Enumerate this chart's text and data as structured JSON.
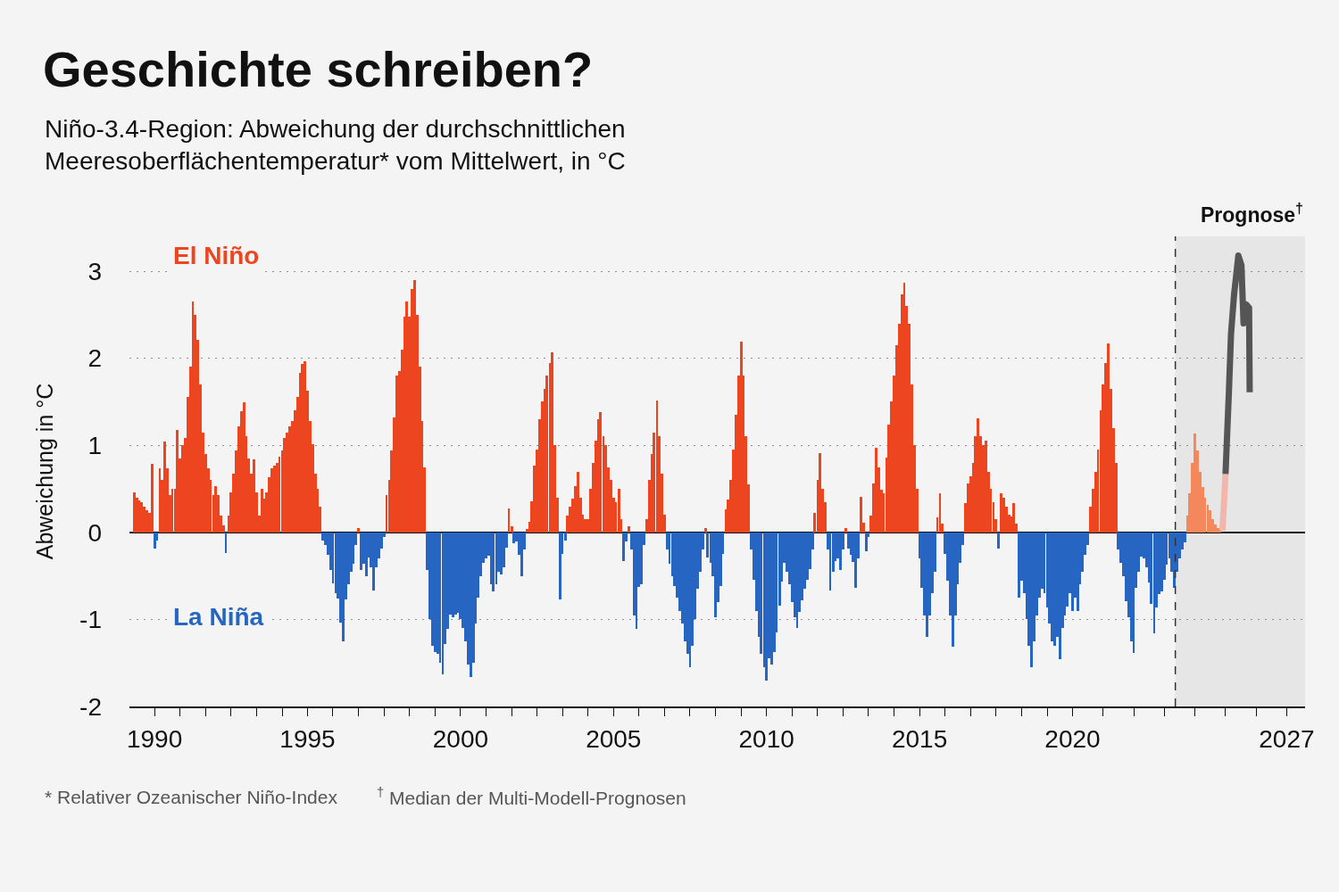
{
  "chart_data": {
    "type": "bar",
    "title": "Geschichte schreiben?",
    "subtitle": "Niño-3.4-Region: Abweichung der durchschnittlichen Meeresoberflächentemperatur* vom Mittelwert, in °C",
    "ylabel": "Abweichung in °C",
    "annotations": [
      "* Relativer Ozeanischer Niño-Index",
      "$^{†}$ Median der Multi-Modell-Prognosen"
    ],
    "x": [
      1989.33,
      1989.42,
      1989.5,
      1989.58,
      1989.67,
      1989.75,
      1989.83,
      1989.92,
      1990,
      1990.08,
      1990.17,
      1990.25,
      1990.33,
      1990.42,
      1990.5,
      1990.58,
      1990.67,
      1990.75,
      1990.83,
      1990.92,
      1991,
      1991.08,
      1991.17,
      1991.25,
      1991.33,
      1991.42,
      1991.5,
      1991.58,
      1991.67,
      1991.75,
      1991.83,
      1991.92,
      1992,
      1992.08,
      1992.17,
      1992.25,
      1992.33,
      1992.42,
      1992.5,
      1992.58,
      1992.67,
      1992.75,
      1992.83,
      1992.92,
      1993,
      1993.08,
      1993.17,
      1993.25,
      1993.33,
      1993.42,
      1993.5,
      1993.58,
      1993.67,
      1993.75,
      1993.83,
      1993.92,
      1994,
      1994.08,
      1994.17,
      1994.25,
      1994.33,
      1994.42,
      1994.5,
      1994.58,
      1994.67,
      1994.75,
      1994.83,
      1994.92,
      1995,
      1995.08,
      1995.17,
      1995.25,
      1995.33,
      1995.42,
      1995.5,
      1995.58,
      1995.67,
      1995.75,
      1995.83,
      1995.92,
      1996,
      1996.08,
      1996.17,
      1996.25,
      1996.33,
      1996.42,
      1996.5,
      1996.58,
      1996.67,
      1996.75,
      1996.83,
      1996.92,
      1997,
      1997.08,
      1997.17,
      1997.25,
      1997.33,
      1997.42,
      1997.5,
      1997.58,
      1997.67,
      1997.75,
      1997.83,
      1997.92,
      1998,
      1998.08,
      1998.17,
      1998.25,
      1998.33,
      1998.42,
      1998.5,
      1998.58,
      1998.67,
      1998.75,
      1998.83,
      1998.92,
      1999,
      1999.08,
      1999.17,
      1999.25,
      1999.33,
      1999.42,
      1999.5,
      1999.58,
      1999.67,
      1999.75,
      1999.83,
      1999.92,
      2000,
      2000.08,
      2000.17,
      2000.25,
      2000.33,
      2000.42,
      2000.5,
      2000.58,
      2000.67,
      2000.75,
      2000.83,
      2000.92,
      2001,
      2001.08,
      2001.17,
      2001.25,
      2001.33,
      2001.42,
      2001.5,
      2001.58,
      2001.67,
      2001.75,
      2001.83,
      2001.92,
      2002,
      2002.08,
      2002.17,
      2002.25,
      2002.33,
      2002.42,
      2002.5,
      2002.58,
      2002.67,
      2002.75,
      2002.83,
      2002.92,
      2003,
      2003.08,
      2003.17,
      2003.25,
      2003.33,
      2003.42,
      2003.5,
      2003.58,
      2003.67,
      2003.75,
      2003.83,
      2003.92,
      2004,
      2004.08,
      2004.17,
      2004.25,
      2004.33,
      2004.42,
      2004.5,
      2004.58,
      2004.67,
      2004.75,
      2004.83,
      2004.92,
      2005,
      2005.08,
      2005.17,
      2005.25,
      2005.33,
      2005.42,
      2005.5,
      2005.58,
      2005.67,
      2005.75,
      2005.83,
      2005.92,
      2006,
      2006.08,
      2006.17,
      2006.25,
      2006.33,
      2006.42,
      2006.5,
      2006.58,
      2006.67,
      2006.75,
      2006.83,
      2006.92,
      2007,
      2007.08,
      2007.17,
      2007.25,
      2007.33,
      2007.42,
      2007.5,
      2007.58,
      2007.67,
      2007.75,
      2007.83,
      2007.92,
      2008,
      2008.08,
      2008.17,
      2008.25,
      2008.33,
      2008.42,
      2008.5,
      2008.58,
      2008.67,
      2008.75,
      2008.83,
      2008.92,
      2009,
      2009.08,
      2009.17,
      2009.25,
      2009.33,
      2009.42,
      2009.5,
      2009.58,
      2009.67,
      2009.75,
      2009.83,
      2009.92,
      2010,
      2010.08,
      2010.17,
      2010.25,
      2010.33,
      2010.42,
      2010.5,
      2010.58,
      2010.67,
      2010.75,
      2010.83,
      2010.92,
      2011,
      2011.08,
      2011.17,
      2011.25,
      2011.33,
      2011.42,
      2011.5,
      2011.58,
      2011.67,
      2011.75,
      2011.83,
      2011.92,
      2012,
      2012.08,
      2012.17,
      2012.25,
      2012.33,
      2012.42,
      2012.5,
      2012.58,
      2012.67,
      2012.75,
      2012.83,
      2012.92,
      2013,
      2013.08,
      2013.17,
      2013.25,
      2013.33,
      2013.42,
      2013.5,
      2013.58,
      2013.67,
      2013.75,
      2013.83,
      2013.92,
      2014,
      2014.08,
      2014.17,
      2014.25,
      2014.33,
      2014.42,
      2014.5,
      2014.58,
      2014.67,
      2014.75,
      2014.83,
      2014.92,
      2015,
      2015.08,
      2015.17,
      2015.25,
      2015.33,
      2015.42,
      2015.5,
      2015.58,
      2015.67,
      2015.75,
      2015.83,
      2015.92,
      2016,
      2016.08,
      2016.17,
      2016.25,
      2016.33,
      2016.42,
      2016.5,
      2016.58,
      2016.67,
      2016.75,
      2016.83,
      2016.92,
      2017,
      2017.08,
      2017.17,
      2017.25,
      2017.33,
      2017.42,
      2017.5,
      2017.58,
      2017.67,
      2017.75,
      2017.83,
      2017.92,
      2018,
      2018.08,
      2018.17,
      2018.25,
      2018.33,
      2018.42,
      2018.5,
      2018.58,
      2018.67,
      2018.75,
      2018.83,
      2018.92,
      2019,
      2019.08,
      2019.17,
      2019.25,
      2019.33,
      2019.42,
      2019.5,
      2019.58,
      2019.67,
      2019.75,
      2019.83,
      2019.92,
      2020,
      2020.08,
      2020.17,
      2020.25,
      2020.33,
      2020.42,
      2020.5,
      2020.58,
      2020.67,
      2020.75,
      2020.83,
      2020.92,
      2021,
      2021.08,
      2021.17,
      2021.25,
      2021.33,
      2021.42,
      2021.5,
      2021.58,
      2021.67,
      2021.75,
      2021.83,
      2021.92,
      2022,
      2022.08,
      2022.17,
      2022.25,
      2022.33,
      2022.42,
      2022.5,
      2022.58,
      2022.67,
      2022.75,
      2022.83,
      2022.92,
      2023,
      2023.08,
      2023.17,
      2023.25,
      2023.33,
      2023.42,
      2023.5,
      2023.58,
      2023.67
    ],
    "series": [
      {
        "name": "El Niño",
        "color": "#ec4520",
        "values": [
          0.46,
          0.4,
          0.37,
          0.35,
          0.3,
          0.25,
          0.22,
          0.79,
          null,
          null,
          0.74,
          0.6,
          1.04,
          0.74,
          0.43,
          0.5,
          0.5,
          1.18,
          0.85,
          1.0,
          1.08,
          1.56,
          1.9,
          2.65,
          2.5,
          2.21,
          1.7,
          1.15,
          0.9,
          0.74,
          0.6,
          0.43,
          0.53,
          0.43,
          0.19,
          0.08,
          null,
          0.19,
          0.46,
          0.67,
          0.94,
          1.22,
          1.39,
          1.49,
          1.1,
          0.85,
          0.67,
          0.84,
          0.46,
          0.19,
          0.5,
          0.39,
          0.46,
          0.63,
          0.74,
          0.77,
          0.8,
          0.87,
          0.94,
          1.08,
          1.15,
          1.22,
          1.28,
          1.4,
          1.56,
          1.83,
          1.93,
          1.97,
          1.63,
          1.28,
          1.01,
          0.67,
          0.5,
          0.3,
          null,
          null,
          null,
          null,
          null,
          null,
          null,
          null,
          null,
          null,
          null,
          null,
          null,
          null,
          0.05,
          null,
          null,
          null,
          null,
          null,
          null,
          null,
          null,
          null,
          null,
          0.43,
          0.6,
          0.94,
          1.32,
          1.8,
          1.85,
          2.1,
          2.48,
          2.65,
          2.48,
          2.8,
          2.9,
          2.5,
          1.9,
          1.28,
          0.75,
          null,
          null,
          null,
          null,
          null,
          null,
          null,
          null,
          null,
          null,
          null,
          null,
          null,
          null,
          null,
          null,
          null,
          null,
          null,
          null,
          null,
          null,
          null,
          null,
          null,
          null,
          null,
          null,
          null,
          null,
          null,
          null,
          0.27,
          0.07,
          null,
          null,
          null,
          null,
          null,
          0.04,
          0.12,
          0.36,
          0.77,
          0.95,
          1.3,
          1.5,
          1.65,
          1.8,
          1.95,
          2.07,
          1.0,
          0.4,
          null,
          null,
          null,
          0.19,
          0.3,
          0.39,
          0.53,
          0.7,
          0.4,
          0.2,
          0.15,
          0.15,
          0.5,
          0.8,
          1.05,
          1.3,
          1.38,
          1.1,
          1.0,
          0.75,
          0.6,
          0.4,
          0.35,
          0.5,
          0.15,
          null,
          null,
          0.07,
          null,
          null,
          null,
          null,
          null,
          null,
          0.15,
          0.6,
          0.9,
          1.15,
          1.51,
          1.1,
          0.67,
          0.2,
          null,
          null,
          null,
          null,
          null,
          null,
          null,
          null,
          null,
          null,
          null,
          null,
          null,
          null,
          null,
          0.05,
          null,
          null,
          null,
          null,
          null,
          null,
          null,
          0.26,
          0.38,
          0.6,
          0.95,
          1.35,
          1.8,
          2.19,
          1.8,
          1.1,
          0.55,
          null,
          null,
          null,
          null,
          null,
          null,
          null,
          null,
          null,
          null,
          null,
          null,
          null,
          null,
          null,
          null,
          null,
          null,
          null,
          null,
          null,
          null,
          null,
          null,
          null,
          0.22,
          0.6,
          0.91,
          0.5,
          0.35,
          null,
          null,
          null,
          null,
          null,
          null,
          null,
          0.05,
          null,
          null,
          null,
          null,
          null,
          0.41,
          0.11,
          null,
          null,
          0.19,
          0.56,
          0.97,
          0.75,
          0.49,
          0.45,
          0.86,
          1.24,
          1.5,
          1.8,
          2.15,
          2.4,
          2.73,
          2.87,
          2.6,
          2.4,
          1.7,
          1.0,
          0.5,
          null,
          null,
          null,
          null,
          null,
          null,
          null,
          0.17,
          0.45,
          0.1,
          null,
          null,
          null,
          null,
          null,
          null,
          null,
          null,
          0.34,
          0.56,
          0.64,
          0.8,
          1.1,
          1.31,
          1.1,
          1.0,
          1.05,
          0.7,
          0.5,
          0.35,
          0.15,
          null,
          0.45,
          0.4,
          0.3,
          0.2,
          0.18,
          0.34,
          0.1,
          null,
          null,
          null,
          null,
          null,
          null,
          null,
          null,
          null,
          null,
          null,
          null,
          null,
          null,
          null,
          null,
          null,
          null,
          null,
          null,
          null,
          null,
          null,
          null,
          null,
          null,
          null,
          null,
          0.3,
          0.5,
          0.7,
          0.95,
          1.4,
          1.7,
          1.95,
          2.17,
          1.65,
          1.2,
          0.8,
          null,
          null,
          null,
          null,
          null,
          null,
          null,
          null,
          null,
          null,
          null,
          null,
          null,
          null,
          null,
          null,
          null,
          null,
          null,
          null,
          null,
          null,
          null,
          null,
          null,
          null,
          null
        ]
      },
      {
        "name": "La Niña",
        "color": "#2765c2",
        "values": [
          null,
          null,
          null,
          null,
          null,
          null,
          null,
          null,
          -0.19,
          -0.09,
          null,
          null,
          null,
          null,
          null,
          null,
          null,
          null,
          null,
          null,
          null,
          null,
          null,
          null,
          null,
          null,
          null,
          null,
          null,
          null,
          null,
          null,
          null,
          null,
          null,
          null,
          -0.24,
          null,
          null,
          null,
          null,
          null,
          null,
          null,
          null,
          null,
          null,
          null,
          null,
          null,
          null,
          null,
          null,
          null,
          null,
          null,
          null,
          null,
          null,
          null,
          null,
          null,
          null,
          null,
          null,
          null,
          null,
          null,
          null,
          null,
          null,
          null,
          null,
          null,
          -0.09,
          -0.15,
          -0.26,
          -0.43,
          -0.59,
          -0.7,
          -0.76,
          -1.04,
          -1.25,
          -0.77,
          -0.6,
          -0.45,
          -0.36,
          -0.15,
          null,
          -0.43,
          -0.36,
          -0.5,
          -0.29,
          -0.4,
          -0.67,
          -0.4,
          -0.3,
          -0.19,
          -0.05,
          null,
          null,
          null,
          null,
          null,
          null,
          null,
          null,
          null,
          null,
          null,
          null,
          null,
          null,
          null,
          null,
          -0.43,
          -1.0,
          -1.3,
          -1.37,
          -1.4,
          -1.5,
          -1.63,
          -1.28,
          -1.11,
          -0.94,
          -0.98,
          -0.94,
          -0.92,
          -1.0,
          -1.1,
          -1.25,
          -1.52,
          -1.66,
          -1.5,
          -1.05,
          -0.75,
          -0.5,
          -0.35,
          -0.3,
          -0.27,
          -0.6,
          -0.68,
          -0.6,
          -0.45,
          -0.48,
          -0.4,
          -0.18,
          null,
          null,
          -0.12,
          -0.1,
          -0.26,
          -0.5,
          -0.2,
          null,
          null,
          null,
          null,
          null,
          null,
          null,
          null,
          null,
          null,
          null,
          null,
          null,
          -0.77,
          -0.25,
          -0.09,
          null,
          null,
          null,
          null,
          null,
          null,
          null,
          null,
          null,
          null,
          null,
          null,
          null,
          null,
          null,
          null,
          null,
          null,
          null,
          null,
          null,
          null,
          -0.33,
          -0.1,
          null,
          -0.2,
          -0.95,
          -1.11,
          -0.63,
          -0.6,
          -0.15,
          null,
          null,
          null,
          null,
          null,
          null,
          null,
          null,
          -0.2,
          -0.36,
          -0.5,
          -0.62,
          -0.75,
          -0.9,
          -1.05,
          -1.25,
          -1.4,
          -1.55,
          -1.3,
          -1.0,
          -0.65,
          -0.45,
          -0.2,
          null,
          -0.29,
          -0.35,
          -0.5,
          -0.98,
          -0.8,
          -0.62,
          -0.25,
          null,
          null,
          null,
          null,
          null,
          null,
          null,
          null,
          null,
          null,
          -0.2,
          -0.55,
          -0.9,
          -1.2,
          -1.4,
          -1.55,
          -1.7,
          -1.45,
          -1.52,
          -1.38,
          -1.15,
          -0.84,
          -0.57,
          -0.35,
          -0.45,
          -0.6,
          -0.8,
          -0.98,
          -1.1,
          -0.91,
          -0.78,
          -0.65,
          -0.55,
          -0.42,
          -0.2,
          null,
          null,
          null,
          null,
          null,
          -0.2,
          -0.67,
          -0.45,
          -0.33,
          -0.3,
          -0.43,
          -0.2,
          null,
          -0.19,
          -0.26,
          -0.34,
          -0.64,
          -0.3,
          null,
          null,
          -0.22,
          -0.05,
          null,
          null,
          null,
          null,
          null,
          null,
          null,
          null,
          null,
          null,
          null,
          null,
          null,
          null,
          null,
          null,
          null,
          null,
          null,
          -0.3,
          -0.64,
          -0.95,
          -1.2,
          -0.95,
          -0.7,
          -0.45,
          null,
          null,
          null,
          -0.25,
          -0.56,
          -0.95,
          -1.31,
          -0.95,
          -0.6,
          -0.35,
          -0.15,
          null,
          null,
          null,
          null,
          null,
          null,
          null,
          null,
          null,
          null,
          null,
          null,
          null,
          -0.19,
          null,
          null,
          null,
          null,
          null,
          null,
          null,
          -0.75,
          -0.56,
          -0.7,
          -1.0,
          -1.3,
          -1.55,
          -1.25,
          -0.95,
          -0.75,
          -0.65,
          -0.7,
          -0.86,
          -1.05,
          -1.25,
          -1.3,
          -1.2,
          -1.46,
          -1.1,
          -0.95,
          -0.85,
          -0.7,
          -0.9,
          -0.75,
          -0.9,
          -0.6,
          -0.45,
          -0.26,
          -0.15,
          null,
          null,
          null,
          null,
          null,
          null,
          null,
          null,
          null,
          null,
          null,
          -0.2,
          -0.35,
          -0.5,
          -0.79,
          -0.98,
          -1.25,
          -1.39,
          -0.64,
          -0.45,
          -0.28,
          -0.3,
          -0.4,
          -0.58,
          -0.82,
          -1.16,
          -0.86,
          -0.71,
          -0.68,
          -0.55,
          -0.37,
          -0.3,
          -0.45,
          -0.64,
          -0.45,
          -0.3,
          -0.2,
          -0.11
        ]
      },
      {
        "color": "#f5875c",
        "x": [
          2023.75,
          2023.83,
          2023.92,
          2024,
          2024.08,
          2024.17,
          2024.25,
          2024.33,
          2024.42,
          2024.5,
          2024.58,
          2024.67,
          2024.75,
          2024.83
        ],
        "values": [
          0.19,
          0.45,
          0.8,
          1.14,
          0.94,
          0.7,
          0.52,
          0.4,
          0.32,
          0.25,
          0.15,
          0.09,
          0.05,
          0.03
        ]
      },
      {
        "type": "line",
        "color": "#f2b6ab",
        "x": [
          2024.9,
          2025
        ],
        "values": [
          0.02,
          0.67
        ]
      },
      {
        "type": "line",
        "color": "#555555",
        "x": [
          2025,
          2025.11,
          2025.18,
          2025.28,
          2025.42,
          2025.52,
          2025.59,
          2025.67,
          2025.77,
          2025.79
        ],
        "values": [
          0.67,
          1.61,
          2.28,
          2.73,
          3.18,
          3.07,
          2.4,
          2.62,
          2.58,
          1.61
        ]
      }
    ],
    "xlim": [
      1989.18,
      2027.6
    ],
    "ylim": [
      -2,
      3.4
    ],
    "xticks": [
      1990,
      {
        "value": 1990.83,
        "label": null
      },
      {
        "value": 1991.67,
        "label": null
      },
      {
        "value": 1992.5,
        "label": null
      },
      {
        "value": 1993.33,
        "label": null
      },
      {
        "value": 1994.17,
        "label": null
      },
      1995,
      {
        "value": 1995.83,
        "label": null
      },
      {
        "value": 1996.67,
        "label": null
      },
      {
        "value": 1997.5,
        "label": null
      },
      {
        "value": 1998.33,
        "label": null
      },
      {
        "value": 1999.17,
        "label": null
      },
      2000,
      {
        "value": 2000.83,
        "label": null
      },
      {
        "value": 2001.67,
        "label": null
      },
      {
        "value": 2002.5,
        "label": null
      },
      {
        "value": 2003.33,
        "label": null
      },
      {
        "value": 2004.17,
        "label": null
      },
      2005,
      {
        "value": 2005.83,
        "label": null
      },
      {
        "value": 2006.67,
        "label": null
      },
      {
        "value": 2007.5,
        "label": null
      },
      {
        "value": 2008.33,
        "label": null
      },
      {
        "value": 2009.17,
        "label": null
      },
      2010,
      {
        "value": 2010.83,
        "label": null
      },
      {
        "value": 2011.67,
        "label": null
      },
      {
        "value": 2012.5,
        "label": null
      },
      {
        "value": 2013.33,
        "label": null
      },
      {
        "value": 2014.17,
        "label": null
      },
      2015,
      {
        "value": 2015.83,
        "label": null
      },
      {
        "value": 2016.67,
        "label": null
      },
      {
        "value": 2017.5,
        "label": null
      },
      {
        "value": 2018.33,
        "label": null
      },
      {
        "value": 2019.17,
        "label": null
      },
      2020,
      {
        "value": 2021,
        "label": null
      },
      {
        "value": 2022,
        "label": null
      },
      {
        "value": 2023,
        "label": null
      },
      {
        "value": 2024,
        "label": null
      },
      {
        "value": 2025,
        "label": null
      },
      {
        "value": 2026,
        "label": null
      },
      2027
    ],
    "yticks": [
      -2,
      -1,
      0,
      1,
      2,
      3
    ],
    "grid": "y",
    "bands": [
      {
        "axis": "x",
        "from": 2023.36,
        "to": 2027.6,
        "label": "Prognose$^{†}$",
        "color": "#e6e6e6"
      }
    ],
    "ref_lines": [
      {
        "axis": "x",
        "value": 2023.36,
        "color": "#333333",
        "line_style": "dashed"
      }
    ]
  }
}
